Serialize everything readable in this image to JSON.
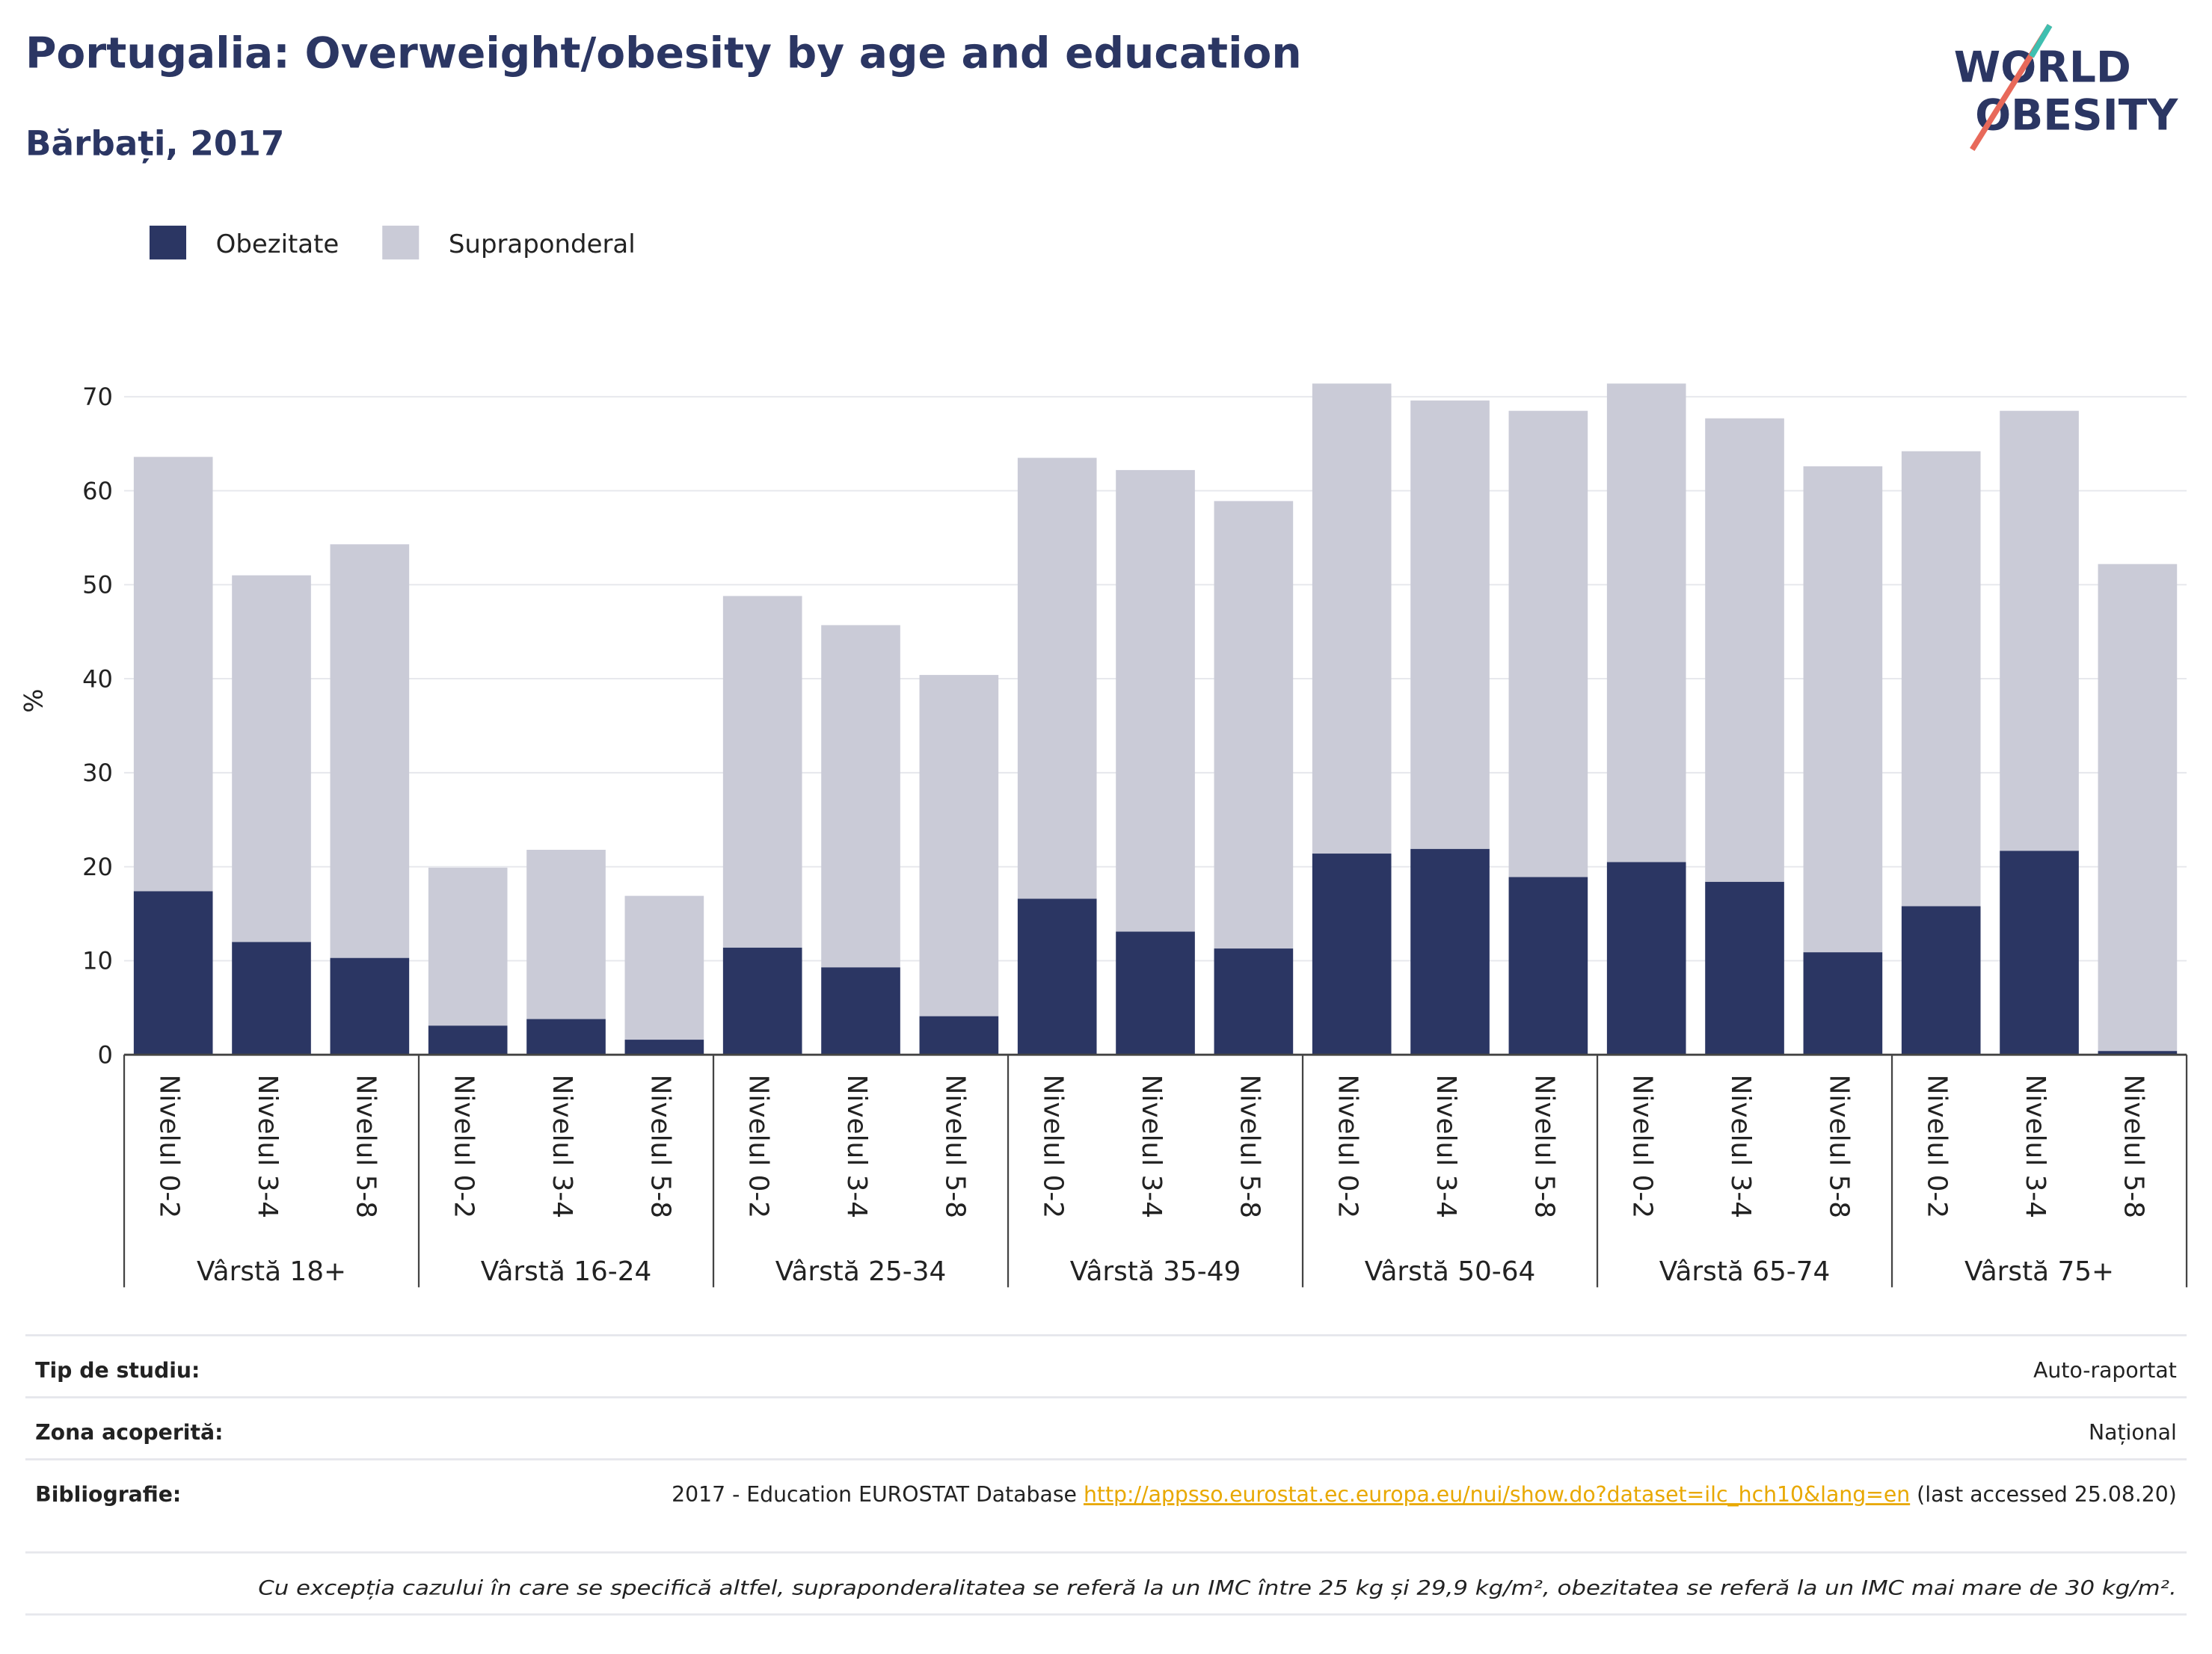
{
  "chart_data": {
    "type": "stacked_bar",
    "title": "Portugalia: Overweight/obesity by age and education",
    "subtitle": "Bărbați, 2017",
    "y_label": "%",
    "categories": [
      "Nivelul 0-2",
      "Nivelul 3-4",
      "Nivelul 5-8",
      "Nivelul 0-2",
      "Nivelul 3-4",
      "Nivelul 5-8",
      "Nivelul 0-2",
      "Nivelul 3-4",
      "Nivelul 5-8",
      "Nivelul 0-2",
      "Nivelul 3-4",
      "Nivelul 5-8",
      "Nivelul 0-2",
      "Nivelul 3-4",
      "Nivelul 5-8",
      "Nivelul 0-2",
      "Nivelul 3-4",
      "Nivelul 5-8",
      "Nivelul 0-2",
      "Nivelul 3-4",
      "Nivelul 5-8"
    ],
    "groups": [
      "Vârstă 18+",
      "Vârstă 16-24",
      "Vârstă 25-34",
      "Vârstă 35-49",
      "Vârstă 50-64",
      "Vârstă 65-74",
      "Vârstă 75+"
    ],
    "series": [
      {
        "name": "Obezitate",
        "color": "#2b3663",
        "values": [
          17.4,
          12.0,
          10.3,
          3.1,
          3.8,
          1.6,
          11.4,
          9.3,
          4.1,
          16.6,
          13.1,
          11.3,
          21.4,
          21.9,
          18.9,
          20.5,
          18.4,
          10.9,
          15.8,
          21.7,
          0.4
        ]
      },
      {
        "name": "Supraponderal",
        "color": "#cacbd7",
        "values": [
          46.2,
          39.0,
          44.0,
          16.8,
          18.0,
          15.3,
          37.4,
          36.4,
          36.3,
          46.9,
          49.1,
          47.6,
          50.0,
          47.7,
          49.6,
          50.9,
          49.3,
          51.7,
          48.4,
          46.8,
          51.8
        ]
      }
    ],
    "ylim": [
      0,
      72
    ],
    "yticks": [
      0,
      10,
      20,
      30,
      40,
      50,
      60,
      70
    ],
    "grid": true,
    "legend": "top-left"
  },
  "logo": {
    "line1": "WORLD",
    "line2": "OBESITY"
  },
  "footer": {
    "rows": [
      {
        "label": "Tip de studiu:",
        "value": "Auto-raportat"
      },
      {
        "label": "Zona acoperită:",
        "value": "Național"
      }
    ],
    "bibliography": {
      "label": "Bibliografie:",
      "text": "2017 - Education EUROSTAT Database ",
      "link": "http://appsso.eurostat.ec.europa.eu/nui/show.do?dataset=ilc_hch10&lang=en",
      "after": " (last accessed 25.08.20)"
    },
    "note": "Cu excepția cazului în care se specifică altfel, supraponderalitatea se referă la un IMC între 25 kg și 29,9 kg/m², obezitatea se referă la un IMC mai mare de 30 kg/m²."
  }
}
